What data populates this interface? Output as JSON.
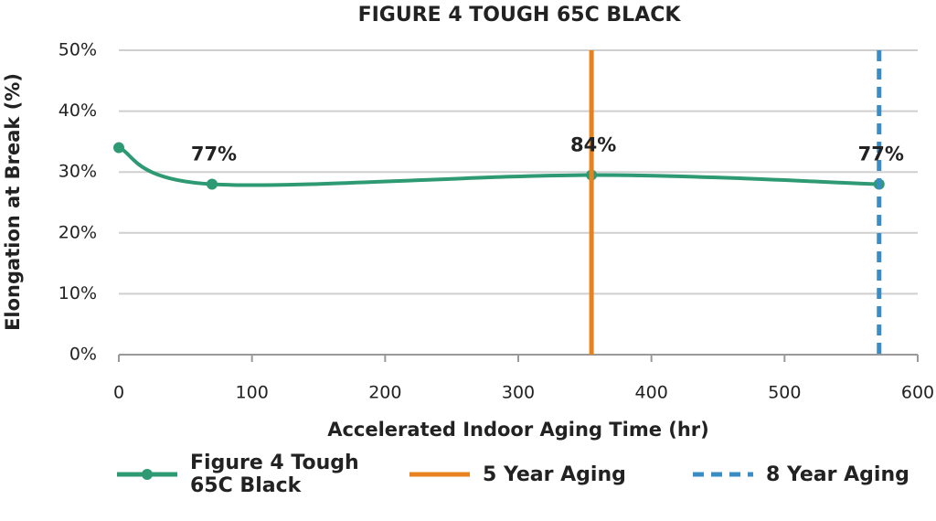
{
  "chart_data": {
    "type": "line",
    "title": "FIGURE 4 TOUGH 65C BLACK",
    "x_label": "Accelerated Indoor Aging Time (hr)",
    "y_label": "Elongation at Break (%)",
    "x": [
      0,
      70,
      355,
      571
    ],
    "series": [
      {
        "name": "Figure 4 Tough 65C Black",
        "color": "#2e9a74",
        "values": [
          34,
          28,
          29.5,
          28
        ]
      }
    ],
    "annotations": [
      {
        "x": 70,
        "text": "77%"
      },
      {
        "x": 355,
        "text": "84%"
      },
      {
        "x": 571,
        "text": "77%"
      }
    ],
    "reference_lines": [
      {
        "name": "5 Year Aging",
        "color": "#e8821e",
        "x": 355,
        "dashed": false
      },
      {
        "name": "8 Year Aging",
        "color": "#3a8cc4",
        "x": 571,
        "dashed": true
      }
    ],
    "xlim": [
      0,
      600
    ],
    "xticks": [
      0,
      100,
      200,
      300,
      400,
      500,
      600
    ],
    "ylim": [
      0,
      50
    ],
    "yticks": [
      {
        "value": 0,
        "label": "0%"
      },
      {
        "value": 10,
        "label": "10%"
      },
      {
        "value": 20,
        "label": "20%"
      },
      {
        "value": 30,
        "label": "30%"
      },
      {
        "value": 40,
        "label": "40%"
      },
      {
        "value": 50,
        "label": "50%"
      }
    ],
    "grid": true,
    "legend": "bottom"
  }
}
